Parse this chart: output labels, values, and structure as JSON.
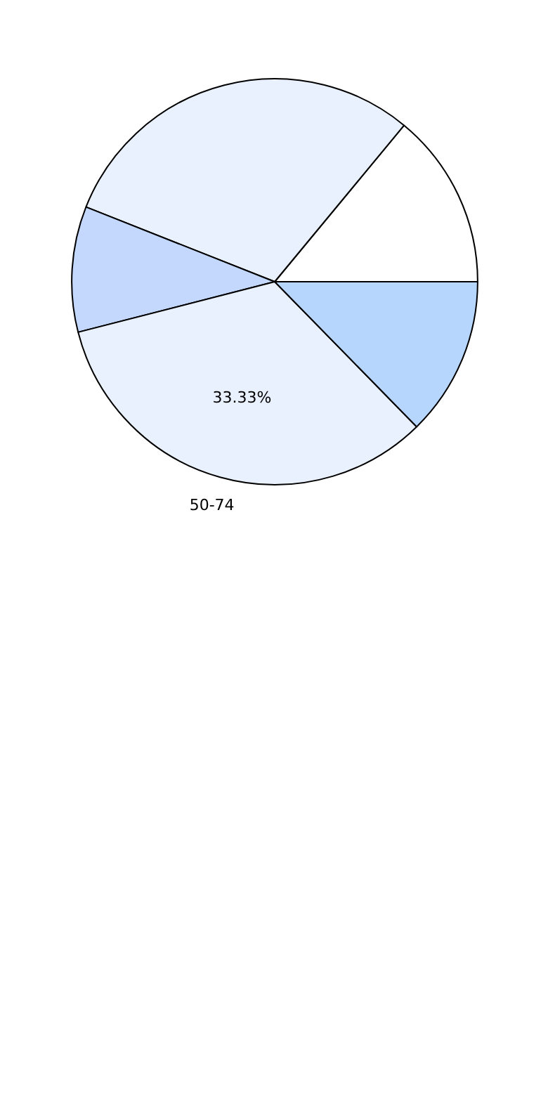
{
  "chart_data": {
    "type": "pie",
    "categories": [
      null,
      null,
      null,
      "50-74",
      null
    ],
    "values": [
      14,
      30,
      10,
      33.33,
      12.67
    ],
    "colors": [
      "#ffffff",
      "#eaf1fe",
      "#c4d8fe",
      "#eaf1fe",
      "#b7d6fe"
    ],
    "value_labels": [
      null,
      null,
      null,
      "33.33%",
      null
    ]
  }
}
